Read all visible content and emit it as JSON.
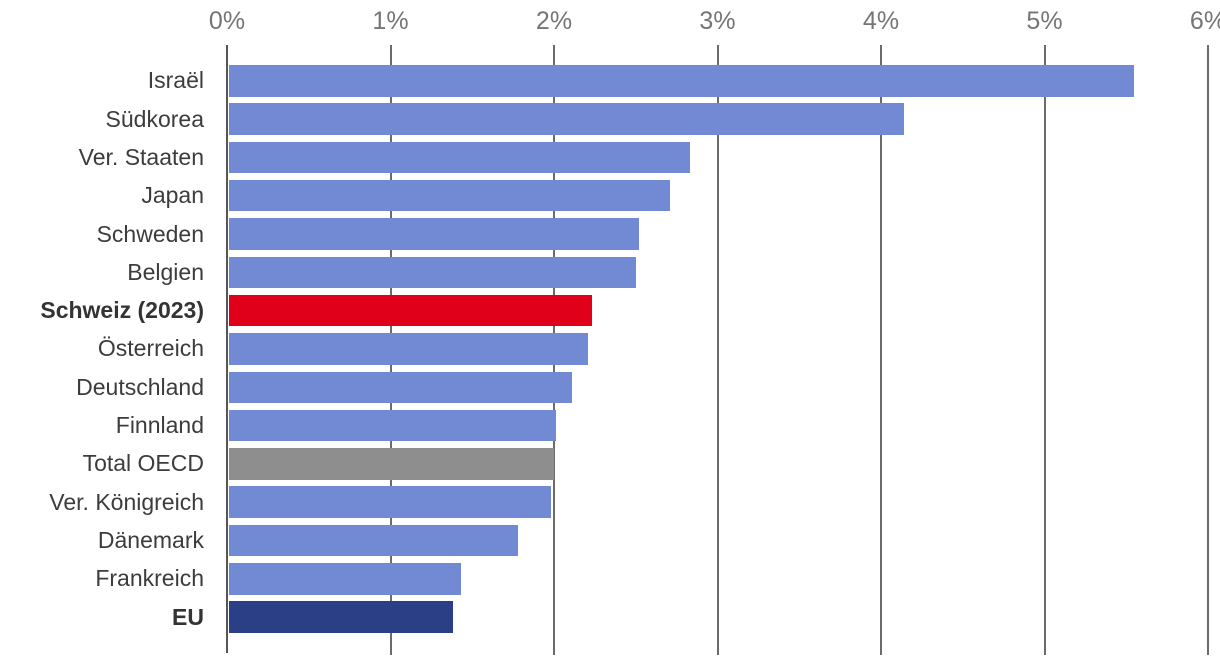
{
  "chart_data": {
    "type": "bar",
    "orientation": "horizontal",
    "title": "",
    "xlabel": "",
    "ylabel": "",
    "x_axis": {
      "position": "top",
      "min": 0,
      "max": 6,
      "unit": "%",
      "tick_values": [
        0,
        1,
        2,
        3,
        4,
        5,
        6
      ],
      "tick_labels": [
        "0%",
        "1%",
        "2%",
        "3%",
        "4%",
        "5%",
        "6%"
      ]
    },
    "grid": true,
    "legend": false,
    "categories": [
      "Israël",
      "Südkorea",
      "Ver. Staaten",
      "Japan",
      "Schweden",
      "Belgien",
      "Schweiz (2023)",
      "Österreich",
      "Deutschland",
      "Finnland",
      "Total OECD",
      "Ver. Königreich",
      "Dänemark",
      "Frankreich",
      "EU"
    ],
    "values": [
      5.55,
      4.14,
      2.83,
      2.71,
      2.52,
      2.5,
      2.23,
      2.21,
      2.11,
      2.01,
      2.0,
      1.98,
      1.78,
      1.43,
      1.38
    ],
    "bars": [
      {
        "label": "Israël",
        "value": 5.55,
        "color": "#7289d4",
        "bold": false
      },
      {
        "label": "Südkorea",
        "value": 4.14,
        "color": "#7289d4",
        "bold": false
      },
      {
        "label": "Ver. Staaten",
        "value": 2.83,
        "color": "#7289d4",
        "bold": false
      },
      {
        "label": "Japan",
        "value": 2.71,
        "color": "#7289d4",
        "bold": false
      },
      {
        "label": "Schweden",
        "value": 2.52,
        "color": "#7289d4",
        "bold": false
      },
      {
        "label": "Belgien",
        "value": 2.5,
        "color": "#7289d4",
        "bold": false
      },
      {
        "label": "Schweiz (2023)",
        "value": 2.23,
        "color": "#e00019",
        "bold": true
      },
      {
        "label": "Österreich",
        "value": 2.21,
        "color": "#7289d4",
        "bold": false
      },
      {
        "label": "Deutschland",
        "value": 2.11,
        "color": "#7289d4",
        "bold": false
      },
      {
        "label": "Finnland",
        "value": 2.01,
        "color": "#7289d4",
        "bold": false
      },
      {
        "label": "Total OECD",
        "value": 2.0,
        "color": "#8e8e8e",
        "bold": false
      },
      {
        "label": "Ver. Königreich",
        "value": 1.98,
        "color": "#7289d4",
        "bold": false
      },
      {
        "label": "Dänemark",
        "value": 1.78,
        "color": "#7289d4",
        "bold": false
      },
      {
        "label": "Frankreich",
        "value": 1.43,
        "color": "#7289d4",
        "bold": false
      },
      {
        "label": "EU",
        "value": 1.38,
        "color": "#2b3f87",
        "bold": true
      }
    ],
    "colors": {
      "bar_default": "#7289d4",
      "bar_highlight_switzerland": "#e00019",
      "bar_total_oecd": "#8e8e8e",
      "bar_eu": "#2b3f87",
      "gridline": "#6b6b6b",
      "zero_axis_line": "#54565a",
      "tick_label_text": "#757575",
      "category_label_text": "#3c3c3c"
    }
  }
}
